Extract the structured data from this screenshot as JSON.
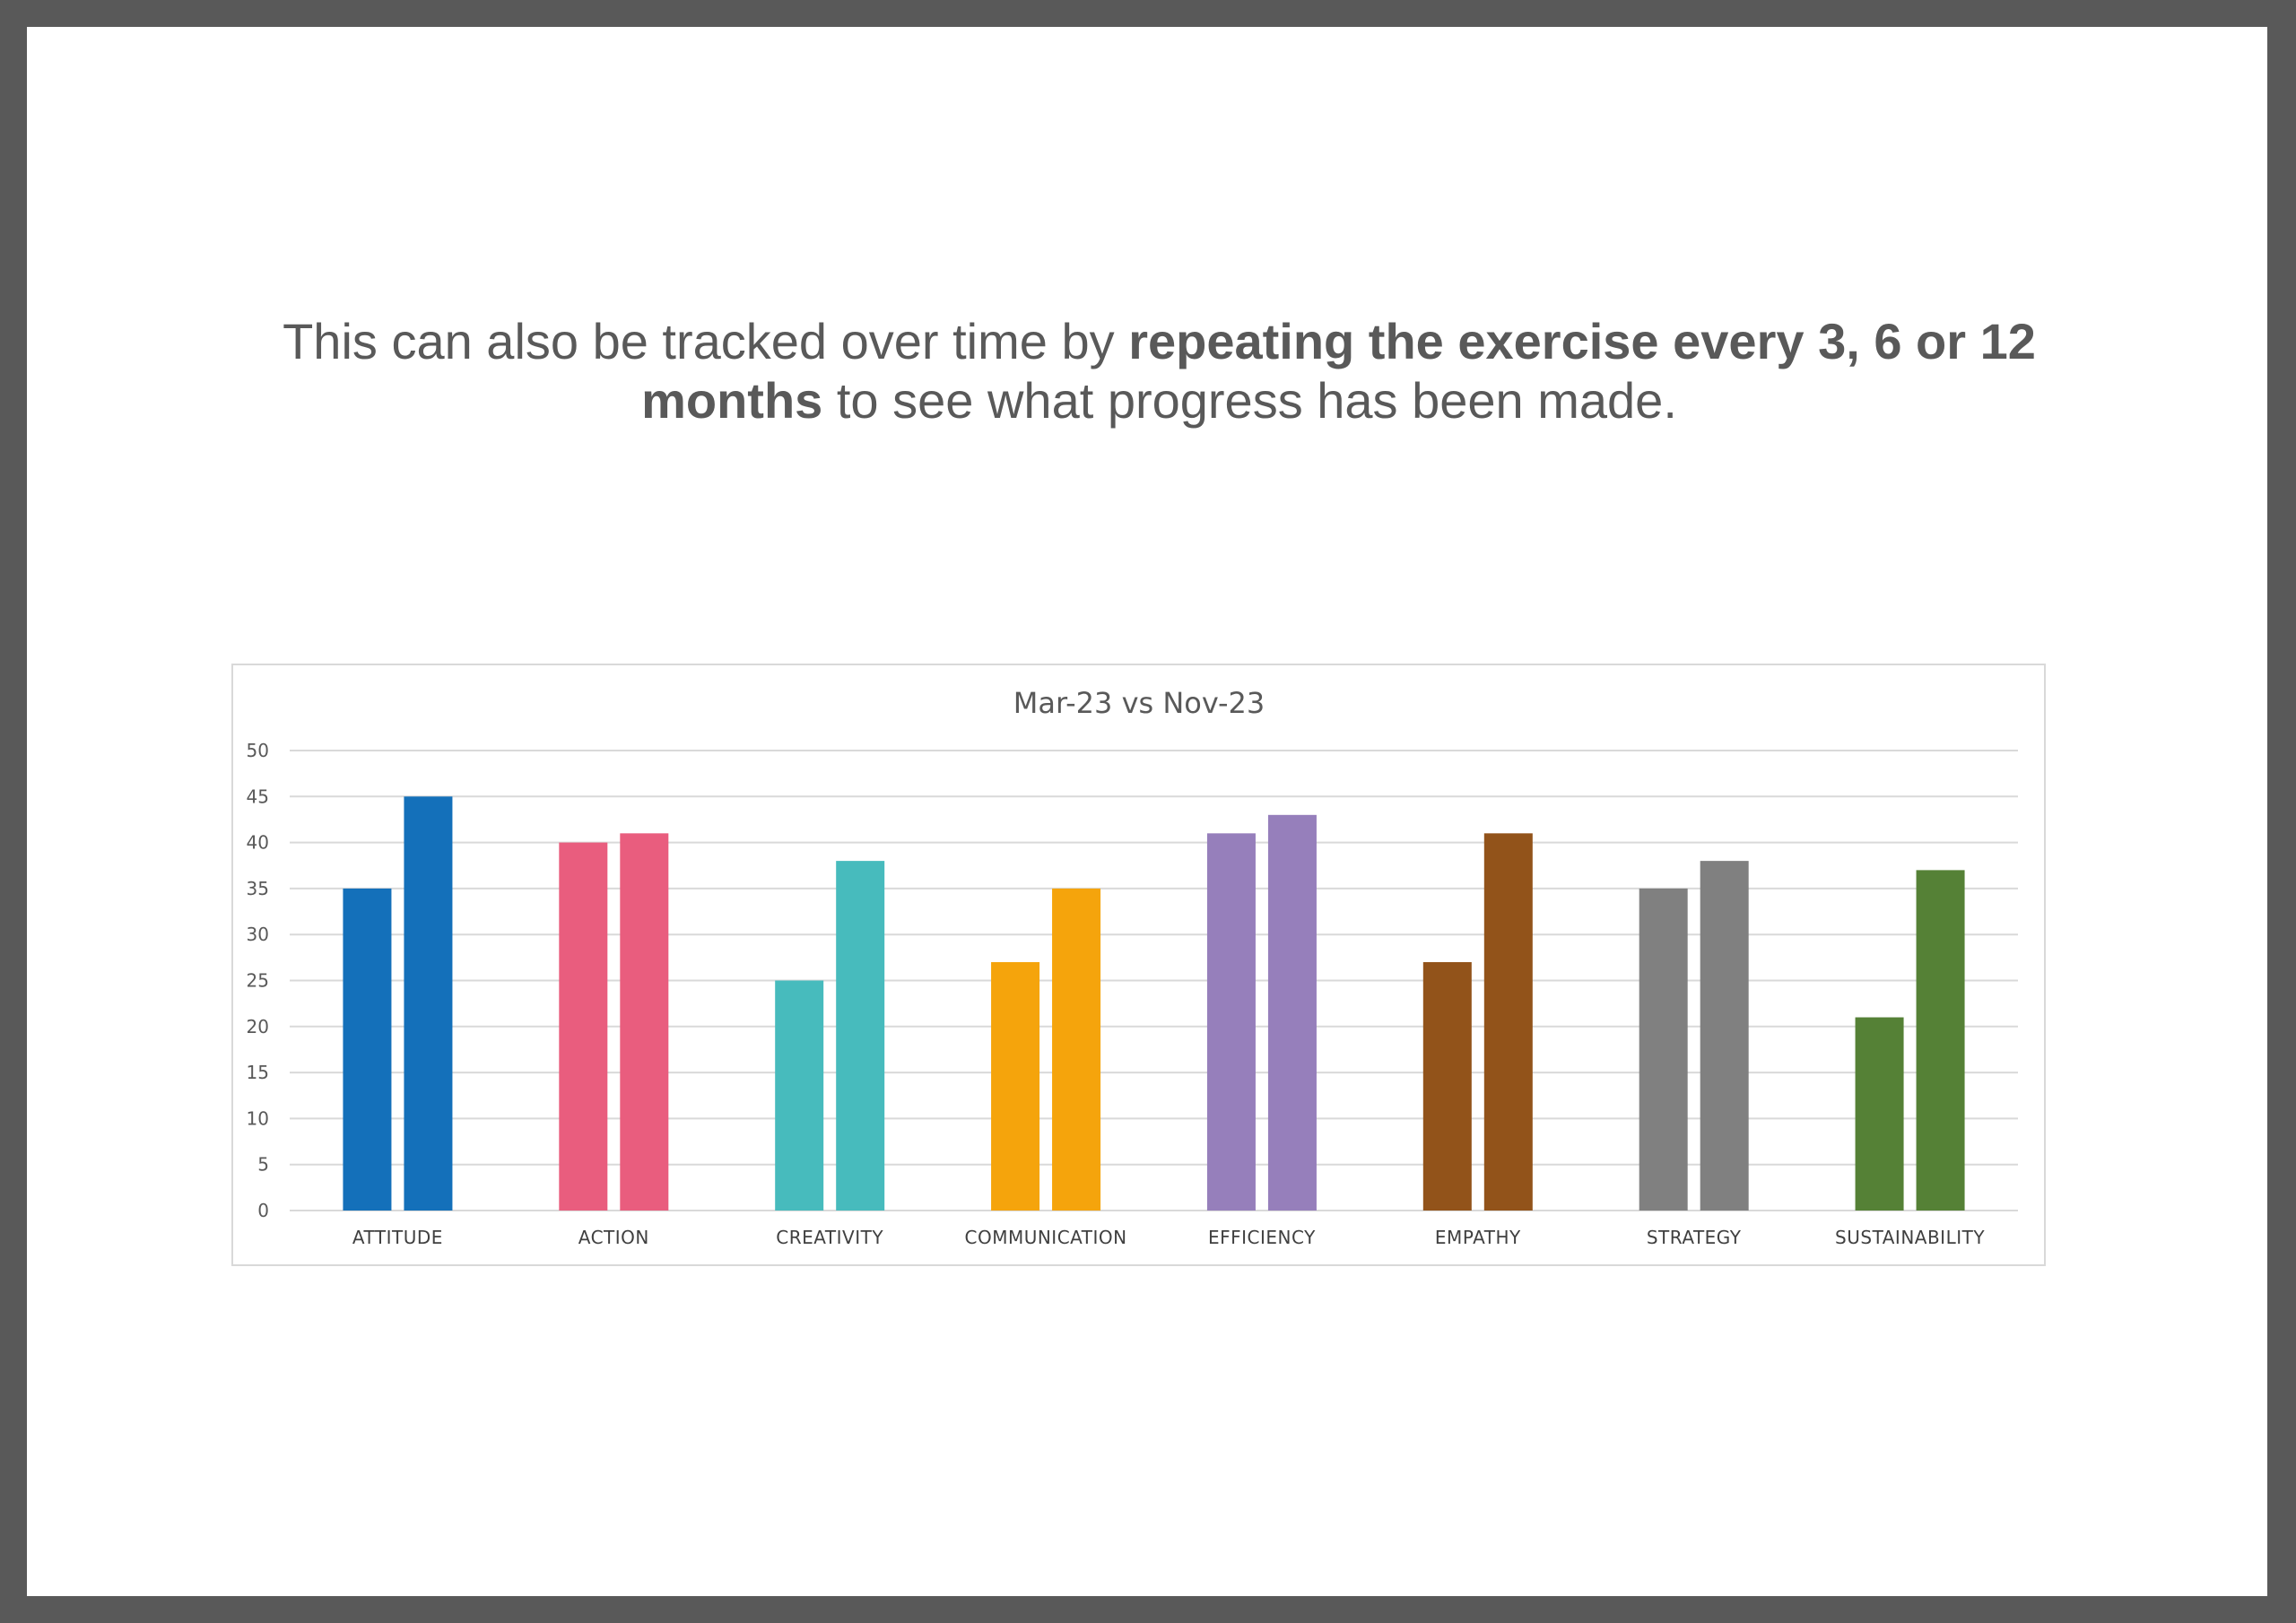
{
  "headline": {
    "part1": "This can also be tracked over time by ",
    "bold1": "repeating the exercise every 3, 6 or 12 months",
    "part2": " to see what progress has been made."
  },
  "chart_data": {
    "type": "bar",
    "title": "Mar-23 vs Nov-23",
    "xlabel": "",
    "ylabel": "",
    "ylim": [
      0,
      50
    ],
    "yticks": [
      0,
      5,
      10,
      15,
      20,
      25,
      30,
      35,
      40,
      45,
      50
    ],
    "grid": true,
    "legend": "none",
    "categories": [
      "ATTITUDE",
      "ACTION",
      "CREATIVITY",
      "COMMUNICATION",
      "EFFICIENCY",
      "EMPATHY",
      "STRATEGY",
      "SUSTAINABILITY"
    ],
    "category_colors": [
      "#1470BA",
      "#E95D7E",
      "#47BBBD",
      "#F5A40C",
      "#967FBB",
      "#92531A",
      "#808080",
      "#558136"
    ],
    "series": [
      {
        "values": [
          35,
          40,
          25,
          27,
          41,
          27,
          35,
          21
        ]
      },
      {
        "values": [
          45,
          41,
          38,
          35,
          43,
          41,
          38,
          37
        ]
      }
    ]
  }
}
